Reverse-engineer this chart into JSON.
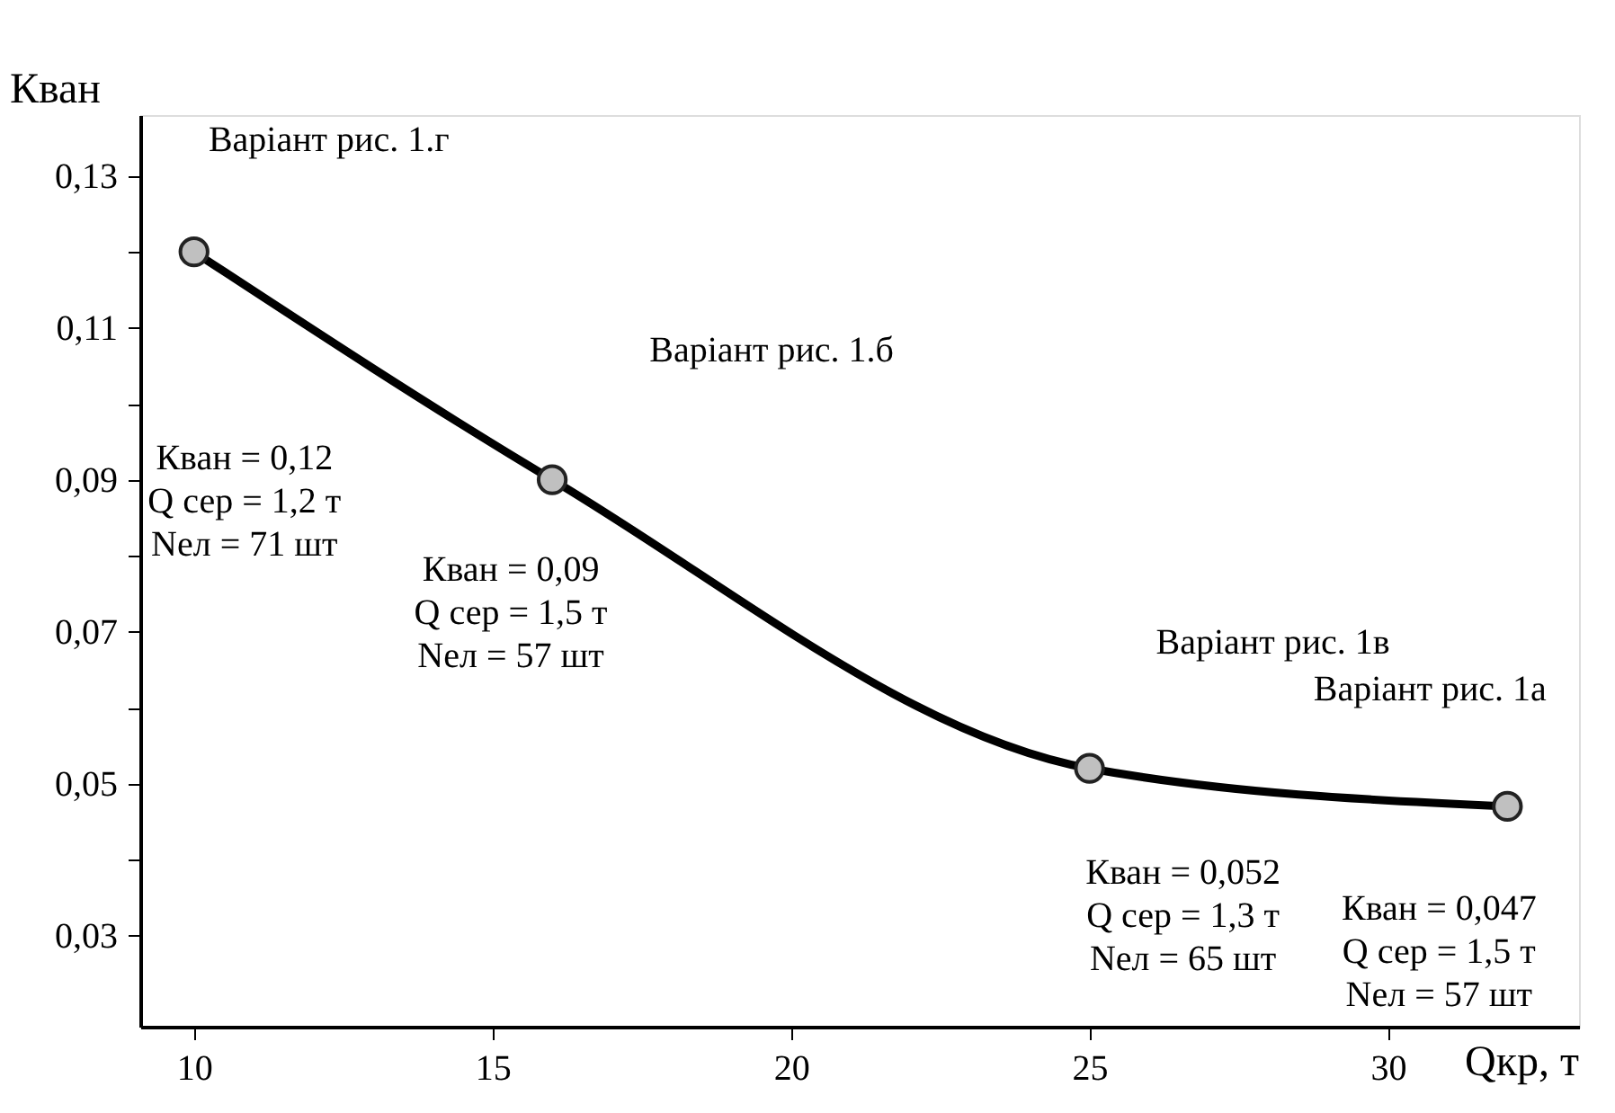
{
  "chart_data": {
    "type": "line",
    "xlabel": "Qкр, т",
    "ylabel": "Кван",
    "x": [
      10,
      16,
      25,
      32
    ],
    "series": [
      {
        "color": "#000000",
        "values": [
          0.12,
          0.09,
          0.052,
          0.047
        ]
      }
    ],
    "xlim": [
      9.1,
      33.2
    ],
    "ylim": [
      0.018,
      0.138
    ],
    "xticks": [
      10,
      15,
      20,
      25,
      30
    ],
    "yticks": [
      {
        "value": 0.03,
        "label": "0,03"
      },
      {
        "value": 0.04,
        "label": null
      },
      {
        "value": 0.05,
        "label": "0,05"
      },
      {
        "value": 0.06,
        "label": null
      },
      {
        "value": 0.07,
        "label": "0,07"
      },
      {
        "value": 0.08,
        "label": null
      },
      {
        "value": 0.09,
        "label": "0,09"
      },
      {
        "value": 0.1,
        "label": null
      },
      {
        "value": 0.11,
        "label": "0,11"
      },
      {
        "value": 0.12,
        "label": null
      },
      {
        "value": 0.13,
        "label": "0,13"
      }
    ],
    "grid": false,
    "marker": "circle",
    "line_style": "solid",
    "annotations": [
      "Варіант  рис. 1.г",
      "Кван = 0,12\nQ сер = 1,2 т\nNел = 71 шт",
      "Варіант рис. 1.б",
      "Кван = 0,09\nQ сер = 1,5 т\nNел = 57 шт",
      "Варіант рис. 1в",
      "Кван = 0,052\nQ сер = 1,3 т\nNел = 65 шт",
      "Варіант  рис. 1а",
      "Кван = 0,047\nQ сер = 1,5 т\nNел = 57 шт"
    ]
  }
}
